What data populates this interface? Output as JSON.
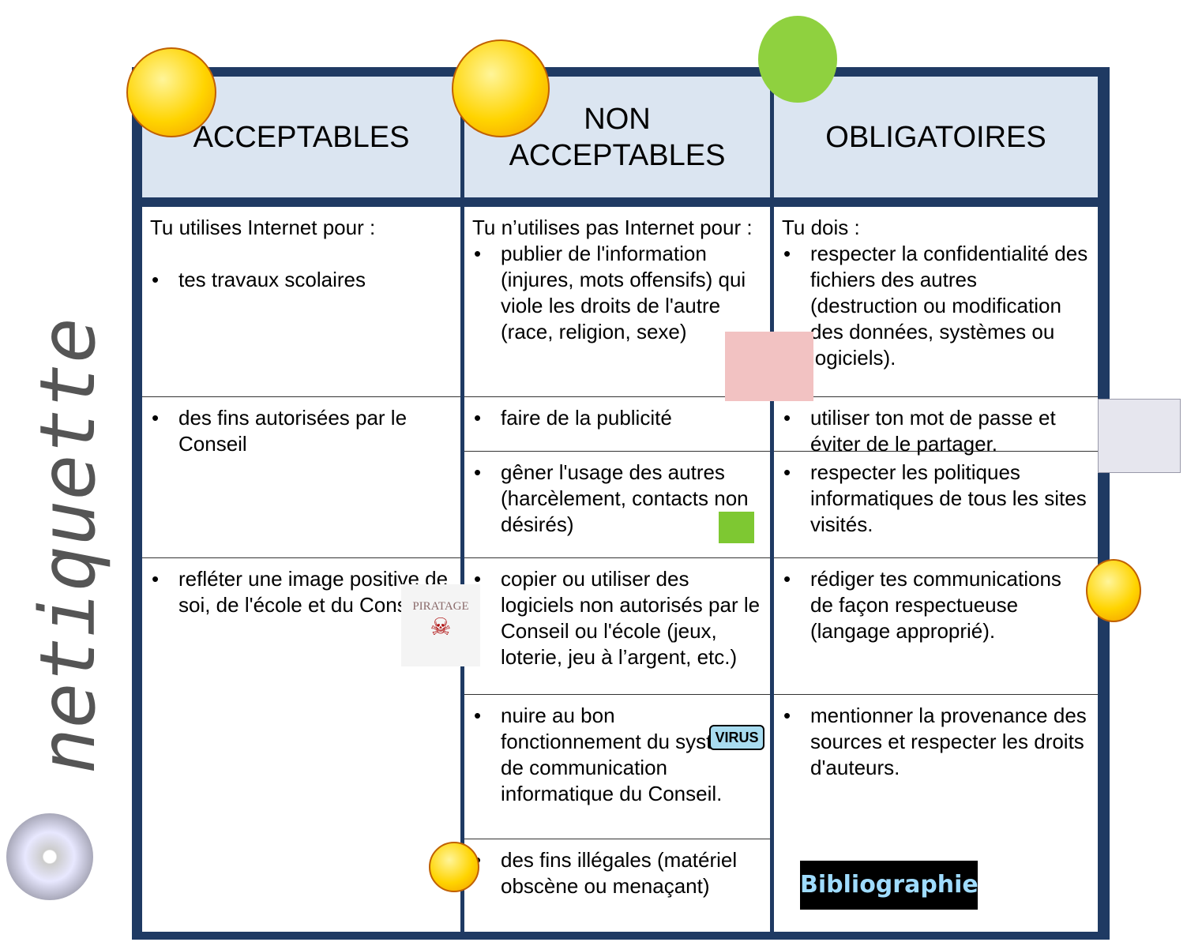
{
  "side_label": "netiquette",
  "headers": [
    "ACCEPTABLES",
    "NON ACCEPTABLES",
    "OBLIGATOIRES"
  ],
  "columns": [
    {
      "intro": "Tu utilises Internet pour :",
      "items": [
        "tes travaux scolaires",
        "des fins autorisées par le Conseil",
        "refléter une image positive de soi, de l'école et du Conseil."
      ]
    },
    {
      "intro": "Tu n’utilises pas Internet pour :",
      "items": [
        "publier de l'information (injures, mots offensifs) qui viole les droits de l'autre (race, religion, sexe)",
        "faire de la publicité",
        "gêner l'usage des autres (harcèlement, contacts non désirés)",
        "copier ou utiliser des logiciels non autorisés par le Conseil ou l'école (jeux, loterie, jeu à l’argent, etc.)",
        "nuire au bon fonctionnement du système de communication informatique du Conseil.",
        "des fins illégales (matériel obscène ou menaçant)"
      ]
    },
    {
      "intro": "Tu dois :",
      "items": [
        "respecter la confidentialité des fichiers des autres (destruction ou modification des données, systèmes ou logiciels).",
        "utiliser ton mot de passe et éviter de le partager.",
        "respecter les politiques informatiques de tous les sites visités.",
        "rédiger tes communications de façon respectueuse (langage approprié).",
        "mentionner la provenance des sources et respecter les droits d'auteurs."
      ]
    }
  ],
  "stickers": {
    "piracy": "PIRATAGE",
    "virus": "VIRUS",
    "bibliography": "Bibliographie"
  }
}
